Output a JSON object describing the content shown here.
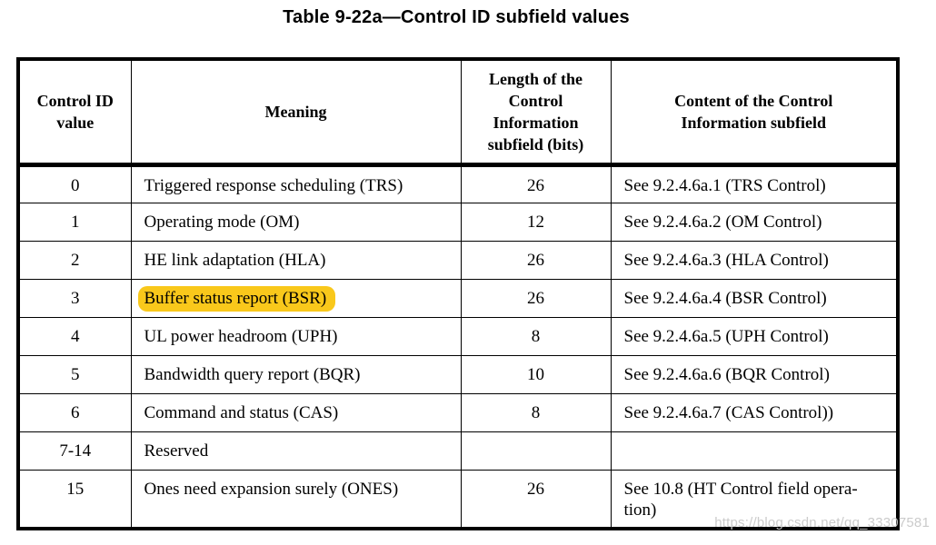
{
  "title": "Table 9-22a—Control ID subfield values",
  "watermark": "https://blog.csdn.net/qq_33307581",
  "highlight_color": "#F9C81B",
  "table": {
    "headers": [
      "Control ID\nvalue",
      "Meaning",
      "Length of the\nControl\nInformation\nsubfield (bits)",
      "Content of the Control\nInformation subfield"
    ],
    "rows": [
      {
        "control_id": "0",
        "meaning": "Triggered response scheduling (TRS)",
        "length_bits": "26",
        "content": "See 9.2.4.6a.1 (TRS Control)",
        "highlight": false
      },
      {
        "control_id": "1",
        "meaning": "Operating mode (OM)",
        "length_bits": "12",
        "content": "See 9.2.4.6a.2 (OM Control)",
        "highlight": false
      },
      {
        "control_id": "2",
        "meaning": "HE link adaptation (HLA)",
        "length_bits": "26",
        "content": "See 9.2.4.6a.3 (HLA Control)",
        "highlight": false
      },
      {
        "control_id": "3",
        "meaning": "Buffer status report (BSR)",
        "length_bits": "26",
        "content": "See 9.2.4.6a.4 (BSR Control)",
        "highlight": true
      },
      {
        "control_id": "4",
        "meaning": "UL power headroom (UPH)",
        "length_bits": "8",
        "content": "See 9.2.4.6a.5 (UPH Control)",
        "highlight": false
      },
      {
        "control_id": "5",
        "meaning": "Bandwidth query report (BQR)",
        "length_bits": "10",
        "content": "See 9.2.4.6a.6 (BQR Control)",
        "highlight": false
      },
      {
        "control_id": "6",
        "meaning": "Command and status (CAS)",
        "length_bits": "8",
        "content": "See 9.2.4.6a.7 (CAS Control))",
        "highlight": false
      },
      {
        "control_id": "7-14",
        "meaning": "Reserved",
        "length_bits": "",
        "content": "",
        "highlight": false
      },
      {
        "control_id": "15",
        "meaning": "Ones need expansion surely (ONES)",
        "length_bits": "26",
        "content": "See 10.8 (HT Control field opera-\ntion)",
        "highlight": false
      }
    ]
  }
}
